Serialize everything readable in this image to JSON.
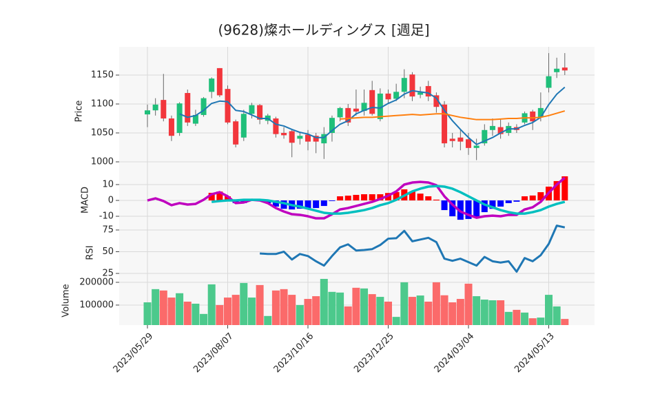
{
  "chart_data": [
    {
      "type": "candlestick",
      "title": "(9628)燦ホールディングス  [週足]",
      "ylabel": "Price",
      "categories": [
        "2023/05/29",
        null,
        null,
        null,
        null,
        null,
        null,
        null,
        null,
        null,
        "2023/08/07",
        null,
        null,
        null,
        null,
        null,
        null,
        null,
        null,
        null,
        "2023/10/16",
        null,
        null,
        null,
        null,
        null,
        null,
        null,
        null,
        null,
        "2023/12/25",
        null,
        null,
        null,
        null,
        null,
        null,
        null,
        null,
        null,
        "2024/03/04",
        null,
        null,
        null,
        null,
        null,
        null,
        null,
        null,
        null,
        "2024/05/13",
        null,
        null
      ],
      "open": [
        1082,
        1089,
        1107,
        1075,
        1050,
        1119,
        1066,
        1081,
        1121,
        1162,
        1126,
        1070,
        1042,
        1083,
        1098,
        1071,
        1075,
        1050,
        1053,
        1040,
        1047,
        1045,
        1032,
        1050,
        1077,
        1093,
        1092,
        1088,
        1124,
        1074,
        1118,
        1109,
        1121,
        1151,
        1116,
        1131,
        1115,
        1099,
        1040,
        1042,
        1039,
        1024,
        1032,
        1055,
        1060,
        1050,
        1060,
        1068,
        1087,
        1077,
        1128,
        1155,
        1163
      ],
      "high": [
        1099,
        1110,
        1152,
        1080,
        1103,
        1125,
        1090,
        1112,
        1146,
        1162,
        1132,
        1073,
        1090,
        1102,
        1100,
        1083,
        1078,
        1060,
        1055,
        1050,
        1055,
        1050,
        1060,
        1080,
        1095,
        1100,
        1125,
        1125,
        1140,
        1127,
        1125,
        1135,
        1160,
        1155,
        1130,
        1140,
        1120,
        1105,
        1050,
        1055,
        1050,
        1040,
        1065,
        1075,
        1075,
        1068,
        1065,
        1087,
        1090,
        1120,
        1188,
        1180,
        1188
      ],
      "low": [
        1060,
        1080,
        1070,
        1036,
        1045,
        1062,
        1062,
        1078,
        1110,
        1112,
        1065,
        1025,
        1036,
        1075,
        1065,
        1065,
        1042,
        1040,
        1008,
        1030,
        1020,
        1015,
        1005,
        1035,
        1070,
        1062,
        1080,
        1080,
        1080,
        1070,
        1100,
        1105,
        1110,
        1105,
        1110,
        1105,
        1085,
        1025,
        1025,
        1020,
        1012,
        1003,
        1028,
        1045,
        1040,
        1045,
        1050,
        1065,
        1055,
        1070,
        1120,
        1145,
        1150
      ],
      "close": [
        1089,
        1099,
        1075,
        1045,
        1101,
        1068,
        1081,
        1110,
        1144,
        1115,
        1068,
        1030,
        1083,
        1098,
        1073,
        1080,
        1048,
        1046,
        1033,
        1045,
        1035,
        1035,
        1048,
        1076,
        1093,
        1068,
        1087,
        1102,
        1083,
        1118,
        1108,
        1121,
        1145,
        1113,
        1120,
        1113,
        1095,
        1032,
        1036,
        1035,
        1024,
        1028,
        1055,
        1062,
        1048,
        1062,
        1055,
        1084,
        1070,
        1093,
        1148,
        1161,
        1158
      ],
      "up_color": "#1fbf7a",
      "down_color": "#f2363c",
      "series": [
        {
          "color": "#1f77b4",
          "values": [
            null,
            null,
            null,
            null,
            1083,
            1077,
            1080,
            1089,
            1101,
            1105,
            1104,
            1089,
            1087,
            1081,
            1075,
            1075,
            1065,
            1062,
            1056,
            1051,
            1048,
            1042,
            1042,
            1054,
            1065,
            1071,
            1083,
            1089,
            1094,
            1093,
            1101,
            1107,
            1117,
            1123,
            1121,
            1119,
            1110,
            1089,
            1071,
            1056,
            1042,
            1030,
            1036,
            1042,
            1050,
            1057,
            1057,
            1063,
            1068,
            1077,
            1099,
            1117,
            1129
          ]
        },
        {
          "color": "#ff7f0e",
          "values": [
            null,
            null,
            null,
            null,
            null,
            null,
            null,
            null,
            null,
            null,
            null,
            null,
            null,
            null,
            null,
            null,
            null,
            null,
            null,
            null,
            null,
            null,
            null,
            null,
            1074,
            1075,
            1076,
            1077,
            1077,
            1078,
            1079,
            1080,
            1081,
            1082,
            1081,
            1082,
            1083,
            1083,
            1080,
            1077,
            1075,
            1073,
            1073,
            1073,
            1074,
            1075,
            1075,
            1076,
            1076,
            1077,
            1080,
            1084,
            1088
          ]
        }
      ],
      "ylim": [
        976.2,
        1198.8
      ],
      "yticks": [
        1000,
        1050,
        1100,
        1150
      ],
      "grid": true
    },
    {
      "type": "macd",
      "ylabel": "MACD",
      "series": [
        {
          "color": "#bf00bf",
          "values": [
            0,
            1.3,
            -0.4,
            -3,
            -1.7,
            -2.6,
            -2.2,
            0.4,
            3.9,
            5.2,
            2.6,
            -1.7,
            -1.3,
            0.4,
            0,
            -1.7,
            -4.8,
            -7,
            -8.7,
            -9.1,
            -10,
            -11.3,
            -11.3,
            -8.7,
            -5.7,
            -4.8,
            -3.5,
            -2.2,
            -0.9,
            0.9,
            3,
            5.7,
            10,
            11.3,
            11.7,
            11.3,
            9.6,
            2.6,
            -2.6,
            -7,
            -9.1,
            -10.9,
            -10,
            -9.6,
            -10,
            -9.1,
            -9.1,
            -5.7,
            -4.3,
            -0.9,
            4.8,
            10,
            14.3
          ]
        },
        {
          "color": "#00bfbf",
          "values": [
            null,
            null,
            null,
            null,
            null,
            null,
            null,
            null,
            -0.9,
            -0.4,
            0,
            0,
            0.4,
            0.4,
            0.4,
            0,
            -0.9,
            -1.7,
            -3,
            -3.9,
            -5.2,
            -6.5,
            -7.8,
            -8.3,
            -8.3,
            -7.8,
            -7,
            -6.1,
            -4.8,
            -3,
            -1.7,
            0.4,
            3,
            5.7,
            7.4,
            8.7,
            9.1,
            8.7,
            7.4,
            5.2,
            2.6,
            0,
            -2.6,
            -4.3,
            -6.1,
            -7.4,
            -8.3,
            -8.3,
            -7.4,
            -6.1,
            -3.9,
            -2.2,
            -0.9
          ]
        }
      ],
      "histogram": {
        "up_color": "#ff0000",
        "down_color": "#0000ff",
        "values": [
          null,
          null,
          null,
          null,
          null,
          null,
          null,
          null,
          4.8,
          5.6,
          2.6,
          -1.7,
          -1.7,
          0,
          -0.4,
          -1.7,
          -3.9,
          -5.3,
          -5.7,
          -5.2,
          -4.8,
          -4.8,
          -3.5,
          -0.4,
          2.6,
          3.0,
          3.5,
          3.9,
          3.9,
          3.9,
          4.7,
          5.3,
          7.0,
          5.6,
          4.3,
          2.6,
          0.5,
          -6.1,
          -10,
          -12.2,
          -11.7,
          -10.9,
          -7.4,
          -5.3,
          -3.9,
          -1.7,
          -0.8,
          2.6,
          3.1,
          5.2,
          8.7,
          12.2,
          15.2
        ]
      },
      "ylim": [
        -15.2,
        15.65
      ],
      "yticks": [
        -10,
        0,
        10
      ],
      "grid": true
    },
    {
      "type": "line",
      "ylabel": "RSI",
      "series": [
        {
          "color": "#1f77b4",
          "values": [
            null,
            null,
            null,
            null,
            null,
            null,
            null,
            null,
            null,
            null,
            null,
            null,
            null,
            null,
            48,
            47.4,
            47.4,
            50,
            41,
            47.4,
            45,
            39,
            34,
            45,
            55,
            58.5,
            51.4,
            52,
            53,
            57.7,
            65,
            65.5,
            74,
            62,
            64,
            66,
            61,
            42,
            39.5,
            42,
            38,
            34,
            44,
            39,
            37.5,
            39,
            27,
            42.7,
            39,
            46,
            59,
            80,
            78
          ]
        }
      ],
      "ylim": [
        16.3,
        81.3
      ],
      "yticks": [
        25,
        50,
        75
      ],
      "grid": true
    },
    {
      "type": "bar",
      "ylabel": "Volume",
      "up_color": "#4cc98c",
      "down_color": "#fb6a6a",
      "values": [
        112000,
        170000,
        164000,
        133000,
        152000,
        115000,
        106000,
        61000,
        191000,
        100000,
        133000,
        145000,
        197000,
        133000,
        188000,
        52000,
        164000,
        170000,
        145000,
        100000,
        127000,
        139000,
        215000,
        158000,
        155000,
        94000,
        176000,
        173000,
        148000,
        136000,
        115000,
        48000,
        200000,
        136000,
        142000,
        115000,
        200000,
        143000,
        112000,
        127000,
        194000,
        139000,
        124000,
        121000,
        121000,
        70000,
        79000,
        67000,
        42000,
        45000,
        145000,
        94000,
        39000
      ],
      "ylim": [
        12100,
        227000
      ],
      "yticks": [
        100000,
        200000
      ],
      "grid": true
    }
  ]
}
